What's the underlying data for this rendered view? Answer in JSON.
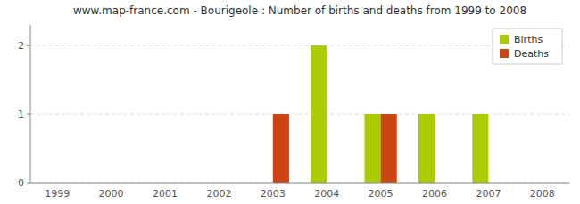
{
  "chart_data": {
    "type": "bar",
    "title": "www.map-france.com - Bourigeole : Number of births and deaths from 1999 to 2008",
    "categories": [
      "1999",
      "2000",
      "2001",
      "2002",
      "2003",
      "2004",
      "2005",
      "2006",
      "2007",
      "2008"
    ],
    "series": [
      {
        "name": "Births",
        "color": "#aacc00",
        "values": [
          0,
          0,
          0,
          0,
          0,
          2,
          1,
          1,
          1,
          0
        ]
      },
      {
        "name": "Deaths",
        "color": "#cc4411",
        "values": [
          0,
          0,
          0,
          0,
          1,
          0,
          1,
          0,
          0,
          0
        ]
      }
    ],
    "ylim": [
      0,
      2.3
    ],
    "yticks": [
      0,
      1,
      2
    ],
    "grid": true,
    "legend": "upper right"
  }
}
